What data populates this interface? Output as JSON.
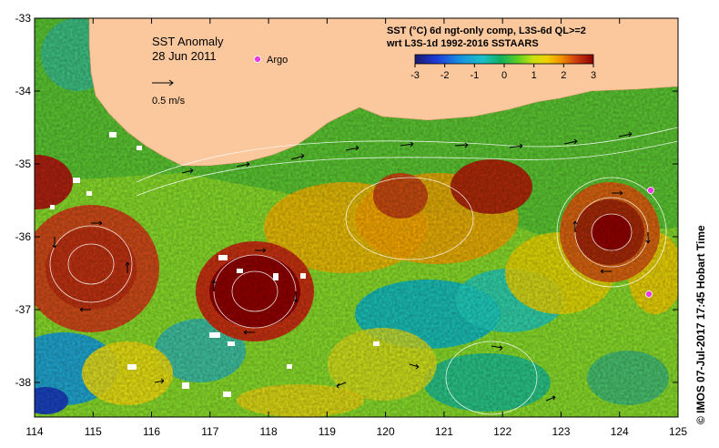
{
  "title": "SST Anomaly",
  "date": "28 Jun 2011",
  "argo_label": "Argo",
  "scale_label": "0.5 m/s",
  "colorbar": {
    "line1": "SST (°C) 6d ngt-only comp, L3S-6d QL>=2",
    "line2": "wrt L3S-1d 1992-2016 SSTAARS",
    "ticks": [
      "-3",
      "-2",
      "-1",
      "0",
      "1",
      "2",
      "3"
    ],
    "colors": [
      "#1a1a6e",
      "#1e3ad8",
      "#1890e0",
      "#19c0c8",
      "#10b060",
      "#30c820",
      "#a8e020",
      "#f0e000",
      "#f0a000",
      "#e06000",
      "#c02000",
      "#8c0000"
    ]
  },
  "x_ticks": [
    "114",
    "115",
    "116",
    "117",
    "118",
    "119",
    "120",
    "121",
    "122",
    "123",
    "124",
    "125"
  ],
  "y_ticks": [
    "-33",
    "-34",
    "-35",
    "-36",
    "-37",
    "-38"
  ],
  "credit": "© IMOS 07-Jul-2017 17:45 Hobart Time",
  "land_color": "#fac89c"
}
